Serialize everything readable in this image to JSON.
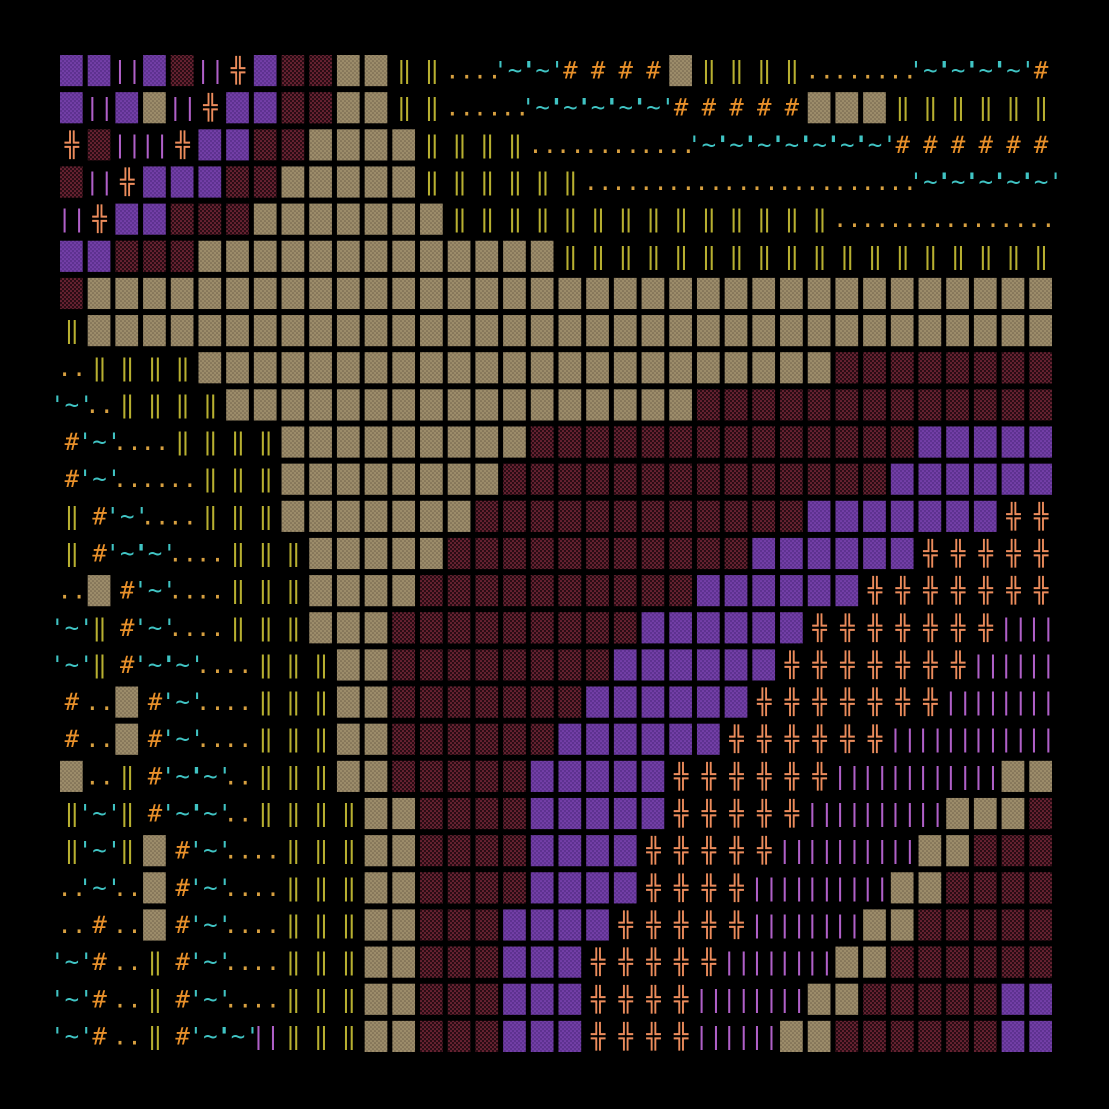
{
  "glyphs": {
    "H": {
      "text": "#",
      "color": "#e8902a"
    },
    "Y": {
      "text": "‖",
      "color": "#b8b030"
    },
    "O": {
      "text": "╬",
      "color": "#ec8c5c"
    },
    "V": {
      "text": "||",
      "color": "#b060c8"
    },
    "D": {
      "text": "..",
      "color": "#d8a040"
    },
    "C": {
      "text": "'~'",
      "color": "#40c4c4"
    }
  },
  "blocks": {
    "T": {
      "color": "#9c8c6a",
      "dot": "#6e6048"
    },
    "P": {
      "color": "#5e3290",
      "dot": "#8a4cc0"
    },
    "M": {
      "color": "#2a0c14",
      "dot": "#a83a50"
    }
  },
  "rows": [
    "PPVPMVOPMMTTYYDDCCHHHHTYYYYDDDDCCCCH",
    "PVPTVOPPMMTTYYDDDCCCCCHHHHHTTTYYYYYY",
    "OMVVOPPMMTTTTYYYYDDDDDDCCCCCCCHHHHHH",
    "MVOPPPMMTTTTTYYYYYYDDDDDDDDDDDDCCCCC",
    "VOPPMMMTTTTTTTYYYYYYYYYYYYYYDDDDDDDD",
    "PPMMMTTTTTTTTTTTTTYYYYYYYYYYYYYYYYYY",
    "MTTTTTTTTTTTTTTTTTTTTTTTTTTTTTTTTTTT",
    "YTTTTTTTTTTTTTTTTTTTTTTTTTTTTTTTTTTT",
    "DYYYYTTTTTTTTTTTTTTTTTTTTTTTMMMMMMMM",
    "CDYYYYTTTTTTTTTTTTTTTTTMMMMMMMMMMMMM",
    "HCDDYYYYTTTTTTTTTMMMMMMMMMMMMMMPPPPP",
    "HCDDDYYYTTTTTTTTMMMMMMMMMMMMMMPPPPPP",
    "YHCDDYYYTTTTTTTMMMMMMMMMMMMPPPPPPPOO",
    "YHCCDDYYYTTTTTMMMMMMMMMMMPPPPPPOOOOO",
    "DTHCDDYYYTTTTMMMMMMMMMMPPPPPPOOOOOOO",
    "CYHCDDYYYTTTMMMMMMMMMPPPPPPOOOOOOOVV",
    "CYHCCDDYYYTTMMMMMMMMPPPPPPOOOOOOOVVV",
    "HDTHCDDYYYTTMMMMMMMPPPPPPOOOOOOOVVVV",
    "HDTHCDDYYYTTMMMMMMPPPPPPOOOOOOVVVVVV",
    "TDYHCCDYYYTTMMMMMPPPPPOOOOOOVVVVVVTT",
    "YCYHCCDYYYYTTMMMMPPPPPOOOOOVVVVVTTTM",
    "YCYTHCDDYYYTTMMMMPPPPOOOOOVVVVVTTMMM",
    "DCDTHCDDYYYTTMMMMPPPPOOOOVVVVVTTMMMM",
    "DHDTHCDDYYYTTMMMPPPPOOOOOVVVVTTMMMMM",
    "CHDYHCDDYYYTTMMMPPPOOOOOVVVVTTMMMMMM",
    "CHDYHCDDYYYTTMMMPPPOOOOVVVVTTMMMMMPP",
    "CHDYHCCVYYYTTMMMPPPOOOOVVVTTMMMMMMPP"
  ]
}
